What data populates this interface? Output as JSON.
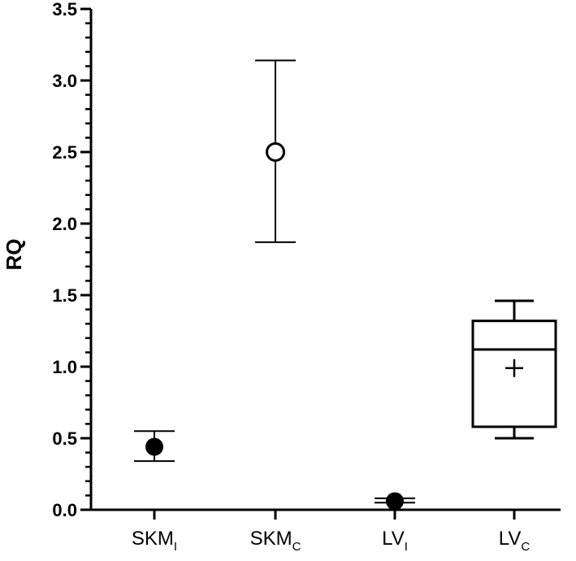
{
  "chart_data": {
    "type": "box",
    "ylabel": "RQ",
    "xlabel": "",
    "ylim": [
      0,
      3.5
    ],
    "yticks": [
      "0.0",
      "0.5",
      "1.0",
      "1.5",
      "2.0",
      "2.5",
      "3.0",
      "3.5"
    ],
    "minor_ticks_per_major": 5,
    "categories": [
      {
        "base": "SKM",
        "sub": "I"
      },
      {
        "base": "SKM",
        "sub": "C"
      },
      {
        "base": "LV",
        "sub": "I"
      },
      {
        "base": "LV",
        "sub": "C"
      }
    ],
    "groups": [
      {
        "kind": "point_errorbar",
        "marker": "filled",
        "value": 0.44,
        "lower": 0.34,
        "upper": 0.55
      },
      {
        "kind": "point_errorbar",
        "marker": "open",
        "value": 2.5,
        "lower": 1.87,
        "upper": 3.14
      },
      {
        "kind": "point_errorbar",
        "marker": "filled",
        "value": 0.06,
        "lower": 0.05,
        "upper": 0.08
      },
      {
        "kind": "box",
        "min": 0.5,
        "q1": 0.58,
        "median": 1.12,
        "q3": 1.32,
        "max": 1.46,
        "mean": 0.99
      }
    ]
  }
}
